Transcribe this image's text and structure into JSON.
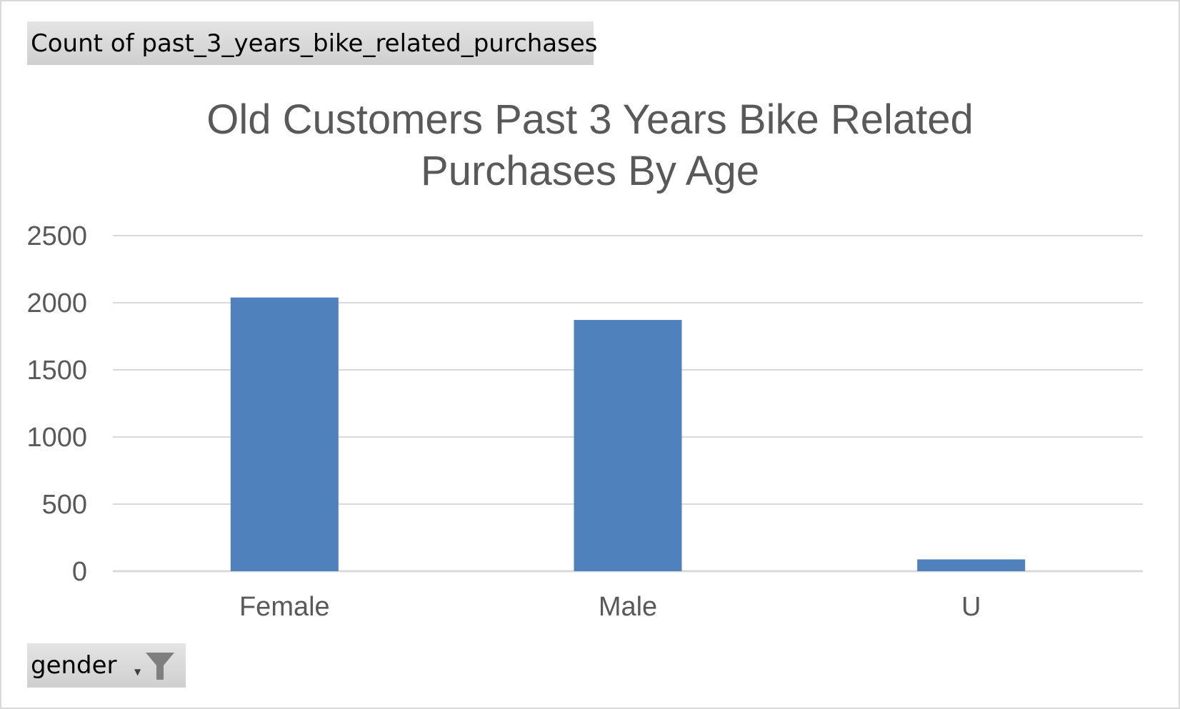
{
  "field_buttons": {
    "values_field": "Count of past_3_years_bike_related_purchases",
    "axis_field": "gender"
  },
  "icons": {
    "filter": "filter-funnel-icon",
    "dropdown": "dropdown-arrow-icon"
  },
  "colors": {
    "bar": "#4f81bd",
    "gridline": "#d9d9d9",
    "text": "#595959"
  },
  "chart_data": {
    "type": "bar",
    "title_lines": [
      "Old Customers Past 3 Years Bike Related",
      "Purchases By Age"
    ],
    "categories": [
      "Female",
      "Male",
      "U"
    ],
    "values": [
      2039,
      1872,
      88
    ],
    "ylim": [
      0,
      2500
    ],
    "yticks": [
      0,
      500,
      1000,
      1500,
      2000,
      2500
    ],
    "grid": true,
    "legend": "none"
  }
}
